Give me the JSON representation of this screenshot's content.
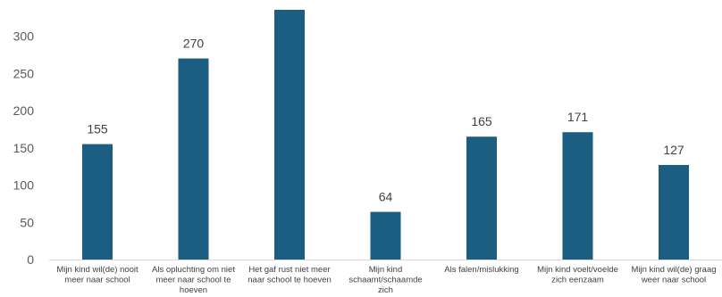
{
  "chart_data": {
    "type": "bar",
    "title": "",
    "xlabel": "",
    "ylabel": "",
    "ylim": [
      0,
      340
    ],
    "yticks": [
      0,
      50,
      100,
      150,
      200,
      250,
      300
    ],
    "grid": false,
    "bar_color": "#1b5e82",
    "categories": [
      [
        "Mijn kind wil(de) nooit",
        "meer naar school"
      ],
      [
        "Als opluchting om niet",
        "meer naar school te",
        "hoeven"
      ],
      [
        "Het gaf rust niet meer",
        "naar school te hoeven"
      ],
      [
        "Mijn kind",
        "schaamt/schaamde",
        "zich"
      ],
      [
        "Als falen/mislukking"
      ],
      [
        "Mijn kind voelt/voelde",
        "zich eenzaam"
      ],
      [
        "Mijn kind wil(de) graag",
        "weer naar school"
      ]
    ],
    "values": [
      155,
      270,
      340,
      64,
      165,
      171,
      127
    ],
    "data_labels": [
      "155",
      "270",
      "",
      "64",
      "165",
      "171",
      "127"
    ]
  }
}
